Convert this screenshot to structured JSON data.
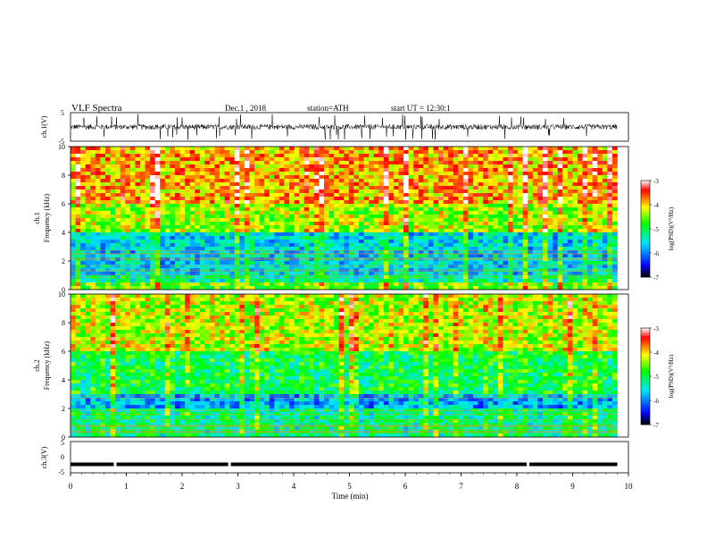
{
  "header": {
    "title": "VLF Spectra",
    "date": "Dec.1 , 2018",
    "station": "station=ATH",
    "start": "start UT = 12:30:1"
  },
  "chart_data": [
    {
      "id": "ch1_waveform",
      "type": "line",
      "ylabel": "ch.1(V)",
      "ylim": [
        -5,
        5
      ],
      "yticks": [
        "5",
        "-5"
      ],
      "x_range_min": [
        0,
        10
      ],
      "trace_extent_min": [
        0,
        9.8
      ],
      "description_values": {
        "baseline": 0,
        "typical_amplitude": 1.5,
        "spike_amplitude": 4.5
      }
    },
    {
      "id": "ch1_spectrogram",
      "type": "heatmap",
      "ylabel": "Frequency (kHz)",
      "channel": "ch.1",
      "ylim": [
        0,
        10
      ],
      "yticks": [
        "0",
        "2",
        "4",
        "6",
        "8",
        "10"
      ],
      "x_range_min": [
        0,
        10
      ],
      "data_extent_min": [
        0,
        9.8
      ],
      "colorbar": {
        "label": "log(PSD)(V²/Hz)",
        "range": [
          -7,
          -3
        ],
        "ticks": [
          "-3",
          "-4",
          "-5",
          "-6",
          "-7"
        ]
      },
      "bands_khz_to_logpsd": [
        {
          "f": [
            0,
            0.5
          ],
          "level": -4.6
        },
        {
          "f": [
            0.5,
            1.0
          ],
          "level": -5.3
        },
        {
          "f": [
            1.0,
            4.0
          ],
          "level": -5.6
        },
        {
          "f": [
            4.0,
            6.0
          ],
          "level": -4.4
        },
        {
          "f": [
            6.0,
            10.0
          ],
          "level": -3.9
        }
      ]
    },
    {
      "id": "ch2_spectrogram",
      "type": "heatmap",
      "ylabel": "Frequency (kHz)",
      "channel": "ch.2",
      "ylim": [
        0,
        10
      ],
      "yticks": [
        "0",
        "2",
        "4",
        "6",
        "8",
        "10"
      ],
      "x_range_min": [
        0,
        10
      ],
      "data_extent_min": [
        0,
        9.8
      ],
      "colorbar": {
        "label": "log(PSD)(V²/Hz)",
        "range": [
          -7,
          -3
        ],
        "ticks": [
          "-3",
          "-4",
          "-5",
          "-6",
          "-7"
        ]
      },
      "bands_khz_to_logpsd": [
        {
          "f": [
            0,
            2.0
          ],
          "level": -5.2
        },
        {
          "f": [
            2.0,
            3.0
          ],
          "level": -5.8
        },
        {
          "f": [
            3.0,
            6.0
          ],
          "level": -5.0
        },
        {
          "f": [
            6.0,
            10.0
          ],
          "level": -4.3
        }
      ]
    },
    {
      "id": "ch3_waveform",
      "type": "line",
      "ylabel": "ch.3(V)",
      "ylim": [
        -5,
        5
      ],
      "yticks": [
        "5",
        "0",
        "-5"
      ],
      "x_range_min": [
        0,
        10
      ],
      "trace_extent_min": [
        0,
        9.8
      ],
      "baseline_value": -2.3,
      "gaps_min": [
        0.8,
        2.85,
        8.2
      ]
    }
  ],
  "xaxis": {
    "label": "Time (min)",
    "ticks": [
      "0",
      "1",
      "2",
      "3",
      "4",
      "5",
      "6",
      "7",
      "8",
      "9",
      "10"
    ]
  },
  "ch_labels": {
    "ch1": "ch.1",
    "ch2": "ch.2"
  },
  "colors": {
    "scale": [
      "#000000",
      "#0000ff",
      "#00e5ff",
      "#00ff00",
      "#ffff00",
      "#ff0000",
      "#ffffff"
    ]
  }
}
